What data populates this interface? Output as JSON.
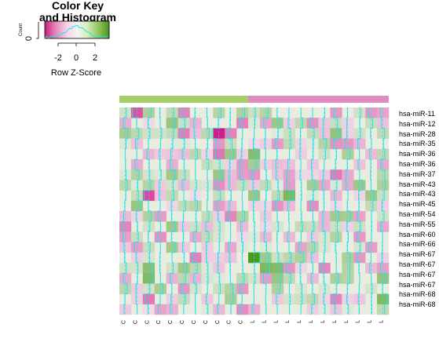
{
  "color_key": {
    "title_line1": "Color Key",
    "title_line2": "and Histogram",
    "count_label": "Count",
    "y_tick_zero": "0",
    "x_ticks": [
      "-2",
      "0",
      "2"
    ],
    "x_label": "Row Z-Score"
  },
  "chart_data": {
    "type": "heatmap",
    "title": "",
    "rows": [
      "hsa-miR-11",
      "hsa-miR-12",
      "hsa-miR-28",
      "hsa-miR-35",
      "hsa-miR-36",
      "hsa-miR-36",
      "hsa-miR-37",
      "hsa-miR-43",
      "hsa-miR-43",
      "hsa-miR-45",
      "hsa-miR-54",
      "hsa-miR-55",
      "hsa-miR-60",
      "hsa-miR-66",
      "hsa-miR-67",
      "hsa-miR-67",
      "hsa-miR-67",
      "hsa-miR-67",
      "hsa-miR-68",
      "hsa-miR-68"
    ],
    "columns": [
      "C",
      "C",
      "C",
      "C",
      "C",
      "C",
      "C",
      "C",
      "C",
      "C",
      "C",
      "L",
      "L",
      "L",
      "L",
      "L",
      "L",
      "L",
      "L",
      "L",
      "L",
      "L",
      "L"
    ],
    "column_groups": [
      {
        "label": "C",
        "count": 11,
        "color": "#a6cd68"
      },
      {
        "label": "L",
        "count": 12,
        "color": "#e08bc0"
      }
    ],
    "z_range": [
      -3,
      3
    ],
    "palette": {
      "low": "#d11d87",
      "mid": "#f4f4f4",
      "high": "#4a9a1c"
    },
    "trace_color": "#23e3ee",
    "cell_bg": "#e9eddf",
    "note": ""
  }
}
